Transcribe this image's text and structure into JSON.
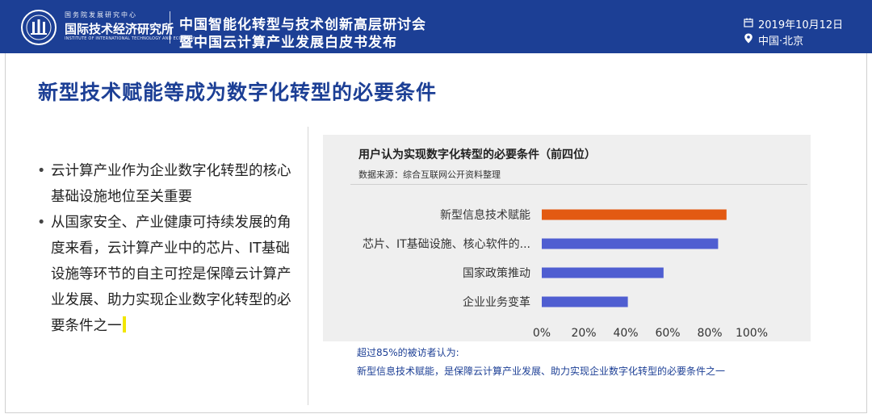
{
  "header": {
    "org_small": "国务院发展研究中心",
    "org_name": "国际技术经济研究所",
    "org_en": "INSTITUTE OF INTERNATIONAL TECHNOLOGY AND ECONOMY",
    "conference_line1": "中国智能化转型与技术创新高层研讨会",
    "conference_line2": "暨中国云计算产业发展白皮书发布",
    "date": "2019年10月12日",
    "location": "中国·北京",
    "brand_color": "#1c3f95"
  },
  "page_title": "新型技术赋能等成为数字化转型的必要条件",
  "bullets": [
    "云计算产业作为企业数字化转型的核心基础设施地位至关重要",
    "从国家安全、产业健康可持续发展的角度来看，云计算产业中的芯片、IT基础设施等环节的自主可控是保障云计算产业发展、助力实现企业数字化转型的必要条件之一"
  ],
  "chart_data": {
    "type": "bar",
    "orientation": "horizontal",
    "title": "用户认为实现数字化转型的必要条件（前四位）",
    "source": "数据来源：综合互联网公开资料整理",
    "categories": [
      "新型信息技术赋能",
      "芯片、IT基础设施、核心软件的...",
      "国家政策推动",
      "企业业务变革"
    ],
    "values": [
      0.88,
      0.84,
      0.58,
      0.41
    ],
    "bar_colors": [
      "#e35a12",
      "#4f5ed1",
      "#4f5ed1",
      "#4f5ed1"
    ],
    "xlim": [
      0,
      1
    ],
    "ticks": [
      0,
      0.2,
      0.4,
      0.6,
      0.8,
      1.0
    ],
    "tick_labels": [
      "0%",
      "20%",
      "40%",
      "60%",
      "80%",
      "100%"
    ],
    "grid": false
  },
  "notes": {
    "line1": "超过85%的被访者认为:",
    "line2": "新型信息技术赋能，是保障云计算产业发展、助力实现企业数字化转型的必要条件之一"
  },
  "icons": {
    "date_icon": "calendar-icon",
    "location_icon": "location-pin-icon",
    "logo": "institute-logo-icon"
  }
}
